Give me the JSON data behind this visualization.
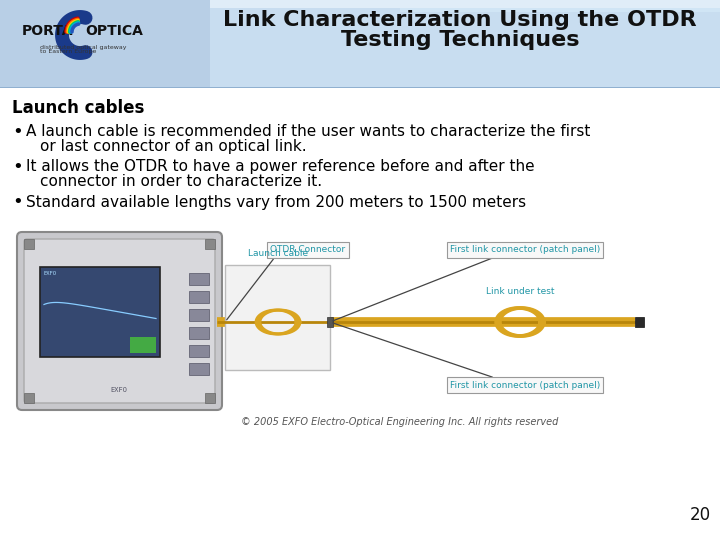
{
  "title_line1": "Link Characterization Using the OTDR",
  "title_line2": "Testing Techniques",
  "header_bg_color_top": "#d6e8f5",
  "header_bg_color_bottom": "#b8d0e8",
  "header_text_color": "#1a1a1a",
  "slide_bg_color": "#ffffff",
  "section_title": "Launch cables",
  "bullet1_line1": "A launch cable is recommended if the user wants to characterize the first",
  "bullet1_line2": "or last connector of an optical link.",
  "bullet2_line1": "It allows the OTDR to have a power reference before and after the",
  "bullet2_line2": "connector in order to characterize it.",
  "bullet3_line1": "Standard available lengths vary from 200 meters to 1500 meters",
  "page_number": "20",
  "copyright_text": "© 2005 EXFO Electro-Optical Engineering Inc. All rights reserved",
  "label_otdr_connector": "OTDR Connector",
  "label_first_link_top": "First link connector (patch panel)",
  "label_launch_cable": "Launch cable",
  "label_link_under_test": "Link under test",
  "label_first_link_bottom": "First link connector (patch panel)",
  "label_color": "#2196A6",
  "fiber_color": "#DAA520",
  "box_fill": "#f8f8f8",
  "box_edge": "#999999",
  "title_fontsize": 16,
  "body_fontsize": 11,
  "section_fontsize": 12,
  "copyright_fontsize": 7,
  "page_fontsize": 12
}
